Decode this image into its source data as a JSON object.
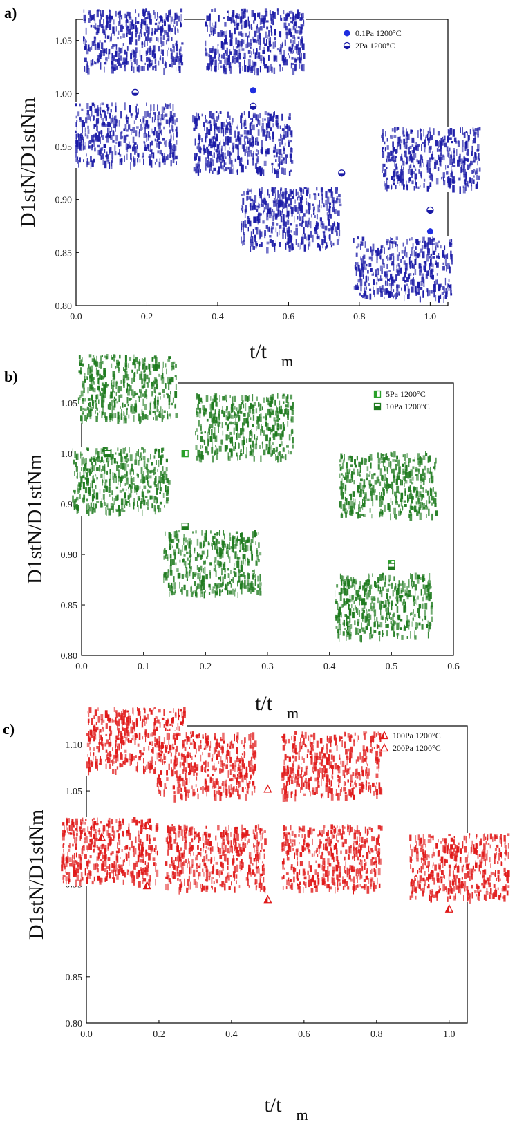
{
  "chart_data": [
    {
      "panel_label": "a)",
      "type": "scatter",
      "xlabel_main": "t/t",
      "xlabel_sub": "m",
      "ylabel": "D1stN/D1stNm",
      "xlim": [
        0.0,
        1.05
      ],
      "ylim": [
        0.8,
        1.07
      ],
      "x_ticks": [
        "0.0",
        "0.2",
        "0.4",
        "0.6",
        "0.8",
        "1.0"
      ],
      "y_ticks": [
        "0.80",
        "0.85",
        "0.90",
        "0.95",
        "1.00",
        "1.05"
      ],
      "legend_position": "top-right",
      "texture_color": "#1a1aa6",
      "series": [
        {
          "name": "0.1Pa 1200°C",
          "marker": "circle-filled",
          "color": "#1f2ee0",
          "points": [
            [
              0.5,
              1.003
            ],
            [
              1.0,
              0.87
            ]
          ]
        },
        {
          "name": "2Pa 1200°C",
          "marker": "circle-half",
          "color": "#1a1aa6",
          "points": [
            [
              0.167,
              1.001
            ],
            [
              0.5,
              0.988
            ],
            [
              0.75,
              0.925
            ],
            [
              1.0,
              0.89
            ]
          ]
        }
      ]
    },
    {
      "panel_label": "b)",
      "type": "scatter",
      "xlabel_main": "t/t",
      "xlabel_sub": "m",
      "ylabel": "D1stN/D1stNm",
      "xlim": [
        0.0,
        0.6
      ],
      "ylim": [
        0.8,
        1.07
      ],
      "x_ticks": [
        "0.0",
        "0.1",
        "0.2",
        "0.3",
        "0.4",
        "0.5",
        "0.6"
      ],
      "y_ticks": [
        "0.80",
        "0.85",
        "0.90",
        "0.95",
        "1.00",
        "1.05"
      ],
      "legend_position": "top-right",
      "texture_color": "#1e7a1e",
      "series": [
        {
          "name": "5Pa 1200°C",
          "marker": "square-half-left",
          "color": "#2aa02a",
          "points": [
            [
              0.167,
              1.0
            ],
            [
              0.5,
              0.891
            ]
          ]
        },
        {
          "name": "10Pa 1200°C",
          "marker": "square-half-bottom",
          "color": "#1e7a1e",
          "points": [
            [
              0.042,
              1.0
            ],
            [
              0.167,
              0.928
            ],
            [
              0.5,
              0.888
            ]
          ]
        }
      ]
    },
    {
      "panel_label": "c)",
      "type": "scatter",
      "xlabel_main": "t/t",
      "xlabel_sub": "m",
      "ylabel": "D1stN/D1stNm",
      "xlim": [
        0.0,
        1.05
      ],
      "ylim": [
        0.8,
        1.12
      ],
      "x_ticks": [
        "0.0",
        "0.2",
        "0.4",
        "0.6",
        "0.8",
        "1.0"
      ],
      "y_ticks": [
        "0.80",
        "0.85",
        "0.95",
        "1.00",
        "1.05",
        "1.10"
      ],
      "legend_position": "top-right",
      "texture_color": "#e01818",
      "series": [
        {
          "name": "100Pa 1200°C",
          "marker": "triangle-half",
          "color": "#e01818",
          "points": [
            [
              0.042,
              1.0
            ],
            [
              0.167,
              0.948
            ],
            [
              0.5,
              0.933
            ],
            [
              1.0,
              0.923
            ]
          ]
        },
        {
          "name": "200Pa 1200°C",
          "marker": "triangle-open",
          "color": "#e01818",
          "points": [
            [
              0.167,
              1.013
            ],
            [
              0.5,
              1.052
            ]
          ]
        }
      ]
    }
  ]
}
